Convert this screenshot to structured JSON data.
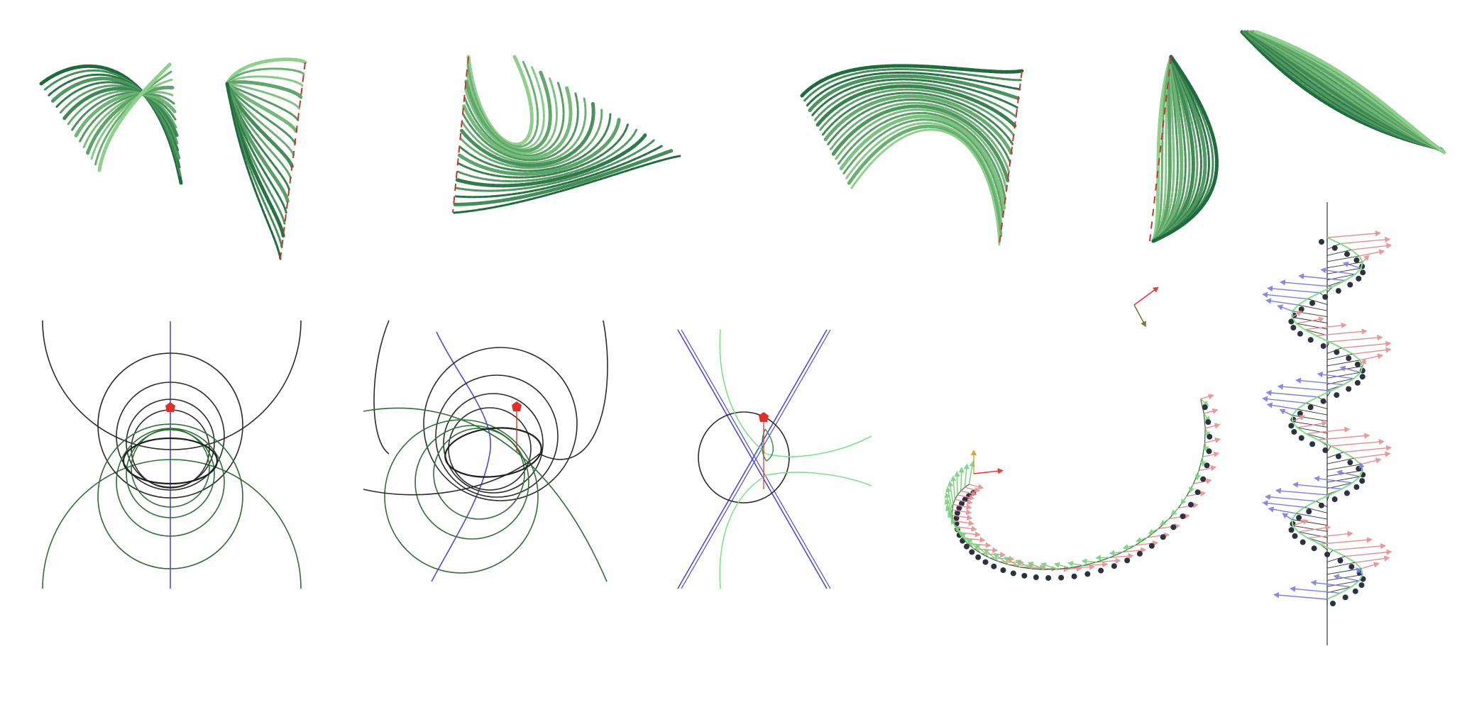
{
  "palette": {
    "background": "#ffffff",
    "ribbon_dark": "#1f6b3e",
    "ribbon_light": "#8fd18c",
    "edge_red": "#c0392b",
    "circle_dark": "#2b2b2b",
    "circle_green": "#2f6e35",
    "axis_blue": "#4a4ae0",
    "marker_red": "#e0302a",
    "curve_light_green": "#7fe08a",
    "arrow_blue": "#7d7de8",
    "arrow_pink": "#e88f8f",
    "arrow_green": "#79d07c",
    "bead_dark": "#2c3340"
  },
  "panels": [
    {
      "kind": "ribbon-surface",
      "name": "ribbon-surface-1"
    },
    {
      "kind": "ribbon-surface",
      "name": "ribbon-surface-2"
    },
    {
      "kind": "ribbon-surface",
      "name": "ribbon-surface-3"
    },
    {
      "kind": "ribbon-surface",
      "name": "ribbon-surface-4"
    },
    {
      "kind": "ribbon-surface",
      "name": "ribbon-surface-5"
    },
    {
      "kind": "ribbon-surface",
      "name": "ribbon-surface-6"
    },
    {
      "kind": "circle-family",
      "name": "circle-family-symmetric"
    },
    {
      "kind": "circle-family",
      "name": "circle-family-tilted"
    },
    {
      "kind": "line-circle-construction",
      "name": "crossing-lines-with-circle"
    },
    {
      "kind": "frame-curve",
      "name": "spiral-frame-curve"
    },
    {
      "kind": "frame-curve",
      "name": "helix-frame-curve"
    }
  ]
}
